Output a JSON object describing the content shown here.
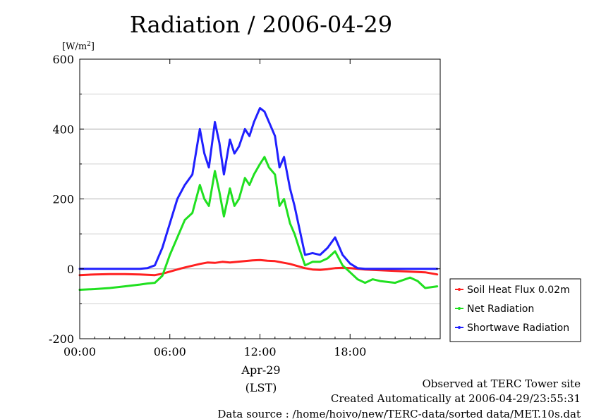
{
  "chart_data": {
    "type": "line",
    "title": "Radiation / 2006-04-29",
    "ylabel": "[W/m",
    "ylabel_sup": "2",
    "ylabel_end": "]",
    "xlabel_line1": "Apr-29",
    "xlabel_line2": "(LST)",
    "ylim": [
      -200,
      600
    ],
    "xlim": [
      0,
      24
    ],
    "yticks": [
      -200,
      0,
      200,
      400,
      600
    ],
    "yticklabels": [
      "-200",
      "0",
      "200",
      "400",
      "600"
    ],
    "xticks": [
      0,
      6,
      12,
      18
    ],
    "xticklabels": [
      "00:00",
      "06:00",
      "12:00",
      "18:00"
    ],
    "grid": true,
    "legend_position": "right",
    "series": [
      {
        "name": "Soil Heat Flux 0.02m",
        "color": "#ff2020",
        "x": [
          0,
          1,
          2,
          3,
          4,
          5,
          5.5,
          6,
          6.5,
          7,
          7.5,
          8,
          8.5,
          9,
          9.5,
          10,
          10.5,
          11,
          11.5,
          12,
          12.5,
          13,
          13.5,
          14,
          14.5,
          15,
          15.5,
          16,
          16.5,
          17,
          17.5,
          18,
          19,
          20,
          21,
          22,
          23,
          23.8
        ],
        "y": [
          -18,
          -16,
          -15,
          -15,
          -16,
          -18,
          -14,
          -8,
          -2,
          4,
          9,
          14,
          18,
          17,
          20,
          18,
          20,
          22,
          24,
          25,
          23,
          22,
          18,
          14,
          8,
          2,
          -2,
          -3,
          -1,
          2,
          3,
          2,
          -2,
          -4,
          -6,
          -8,
          -10,
          -16
        ]
      },
      {
        "name": "Net Radiation",
        "color": "#20e020",
        "x": [
          0,
          1,
          2,
          3,
          4,
          4.5,
          5,
          5.5,
          6,
          6.5,
          7,
          7.5,
          8,
          8.3,
          8.6,
          9,
          9.3,
          9.6,
          10,
          10.3,
          10.6,
          11,
          11.3,
          11.6,
          12,
          12.3,
          12.6,
          13,
          13.3,
          13.6,
          14,
          14.3,
          14.6,
          15,
          15.5,
          16,
          16.5,
          17,
          17.5,
          18,
          18.5,
          19,
          19.5,
          20,
          21,
          22,
          22.5,
          23,
          23.8
        ],
        "y": [
          -60,
          -58,
          -55,
          -50,
          -45,
          -42,
          -40,
          -20,
          40,
          90,
          140,
          160,
          240,
          200,
          180,
          280,
          220,
          150,
          230,
          180,
          200,
          260,
          240,
          270,
          300,
          320,
          290,
          270,
          180,
          200,
          130,
          100,
          60,
          10,
          20,
          20,
          30,
          50,
          10,
          -10,
          -30,
          -40,
          -30,
          -35,
          -40,
          -25,
          -35,
          -55,
          -50
        ]
      },
      {
        "name": "Shortwave Radiation",
        "color": "#2020ff",
        "x": [
          0,
          1,
          2,
          3,
          4,
          4.5,
          5,
          5.5,
          6,
          6.5,
          7,
          7.5,
          8,
          8.3,
          8.6,
          9,
          9.3,
          9.6,
          10,
          10.3,
          10.6,
          11,
          11.3,
          11.6,
          12,
          12.3,
          12.6,
          13,
          13.3,
          13.6,
          14,
          14.3,
          14.6,
          15,
          15.5,
          16,
          16.5,
          17,
          17.5,
          18,
          18.5,
          19,
          20,
          21,
          22,
          23,
          23.8
        ],
        "y": [
          0,
          0,
          0,
          0,
          0,
          2,
          10,
          60,
          130,
          200,
          240,
          270,
          400,
          330,
          290,
          420,
          360,
          270,
          370,
          330,
          350,
          400,
          380,
          420,
          460,
          450,
          420,
          380,
          290,
          320,
          230,
          180,
          120,
          40,
          45,
          40,
          60,
          90,
          40,
          15,
          2,
          0,
          0,
          0,
          0,
          0,
          0
        ]
      }
    ]
  },
  "footer": {
    "line1": "Observed at TERC Tower site",
    "line2": "Created Automatically at 2006-04-29/23:55:31",
    "line3": "Data source : /home/hoivo/new/TERC-data/sorted  data/MET.10s.dat"
  }
}
